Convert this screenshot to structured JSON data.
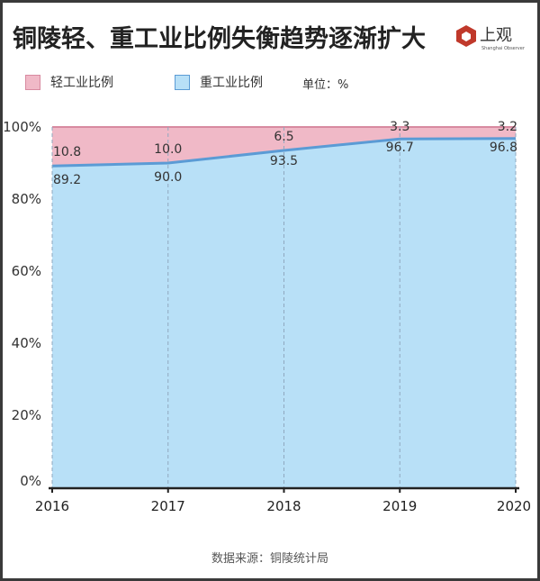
{
  "title": "铜陵轻、重工业比例失衡趋势逐渐扩大",
  "logo": {
    "name": "上观",
    "sub": "Shanghai Observer"
  },
  "unit_label": "单位：%",
  "source": "数据来源：铜陵统计局",
  "colors": {
    "light": "#f0b9c7",
    "light_border": "#d88aa0",
    "heavy": "#b8e0f7",
    "heavy_line": "#5b9bd5",
    "grid": "#8fa8bf"
  },
  "chart_data": {
    "type": "area",
    "stacked": true,
    "title": "铜陵轻、重工业比例失衡趋势逐渐扩大",
    "x": [
      "2016",
      "2017",
      "2018",
      "2019",
      "2020"
    ],
    "series": [
      {
        "name": "重工业比例",
        "values": [
          89.2,
          90.0,
          93.5,
          96.7,
          96.8
        ]
      },
      {
        "name": "轻工业比例",
        "values": [
          10.8,
          10.0,
          6.5,
          3.3,
          3.2
        ]
      }
    ],
    "yticks": [
      "0%",
      "20%",
      "40%",
      "60%",
      "80%",
      "100%"
    ],
    "ylim": [
      0,
      100
    ],
    "legend": "top-left"
  }
}
